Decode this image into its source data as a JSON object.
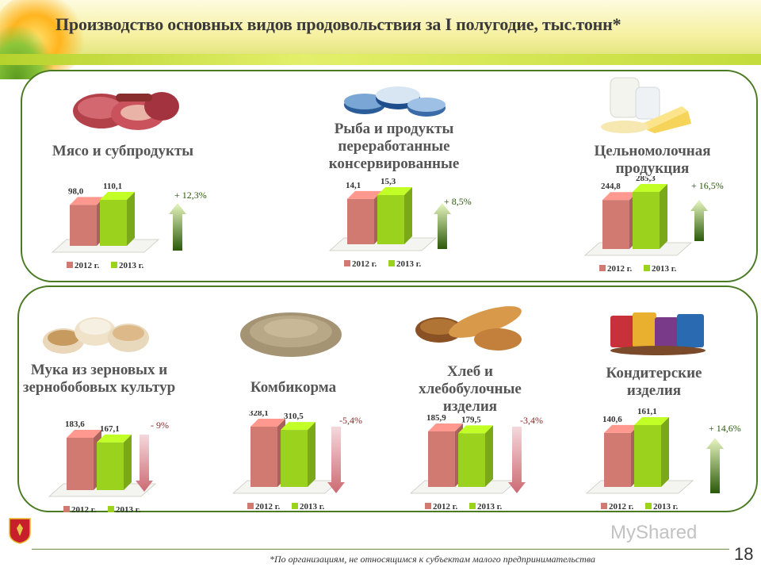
{
  "title": "Производство основных видов продовольствия за I полугодие, тыс.тонн*",
  "footnote": "*По организациям, не относящимся к субъектам малого предпринимательства",
  "page_number": "18",
  "watermark": "MyShared",
  "colors": {
    "y2012": "#d07a72",
    "y2013": "#9ad21e",
    "up": "#6aaa16",
    "down": "#cc6a72",
    "panel_border": "#4a7a22"
  },
  "chart_data": [
    {
      "type": "bar",
      "title": "Мясо и субпродукты",
      "categories": [
        "2012 г.",
        "2013 г."
      ],
      "values": [
        98.0,
        110.1
      ],
      "value_labels": [
        "98,0",
        "110,1"
      ],
      "change": "+ 12,3%",
      "direction": "up"
    },
    {
      "type": "bar",
      "title": "Рыба и продукты переработанные консервированные",
      "categories": [
        "2012 г.",
        "2013 г."
      ],
      "values": [
        14.1,
        15.3
      ],
      "value_labels": [
        "14,1",
        "15,3"
      ],
      "change": "+ 8,5%",
      "direction": "up"
    },
    {
      "type": "bar",
      "title": "Цельномолочная продукция",
      "categories": [
        "2012 г.",
        "2013 г."
      ],
      "values": [
        244.8,
        285.3
      ],
      "value_labels": [
        "244,8",
        "285,3"
      ],
      "change": "+ 16,5%",
      "direction": "up"
    },
    {
      "type": "bar",
      "title": "Мука из зерновых и зернобобовых культур",
      "categories": [
        "2012 г.",
        "2013 г."
      ],
      "values": [
        183.6,
        167.1
      ],
      "value_labels": [
        "183,6",
        "167,1"
      ],
      "change": "- 9%",
      "direction": "down"
    },
    {
      "type": "bar",
      "title": "Комбикорма",
      "categories": [
        "2012 г.",
        "2013 г."
      ],
      "values": [
        328.1,
        310.5
      ],
      "value_labels": [
        "328,1",
        "310,5"
      ],
      "change": "-5,4%",
      "direction": "down"
    },
    {
      "type": "bar",
      "title": "Хлеб и хлебобулочные изделия",
      "categories": [
        "2012 г.",
        "2013 г."
      ],
      "values": [
        185.9,
        179.5
      ],
      "value_labels": [
        "185,9",
        "179,5"
      ],
      "change": "-3,4%",
      "direction": "down"
    },
    {
      "type": "bar",
      "title": "Кондитерские изделия",
      "categories": [
        "2012 г.",
        "2013 г."
      ],
      "values": [
        140.6,
        161.1
      ],
      "value_labels": [
        "140,6",
        "161,1"
      ],
      "change": "+ 14,6%",
      "direction": "up"
    }
  ]
}
